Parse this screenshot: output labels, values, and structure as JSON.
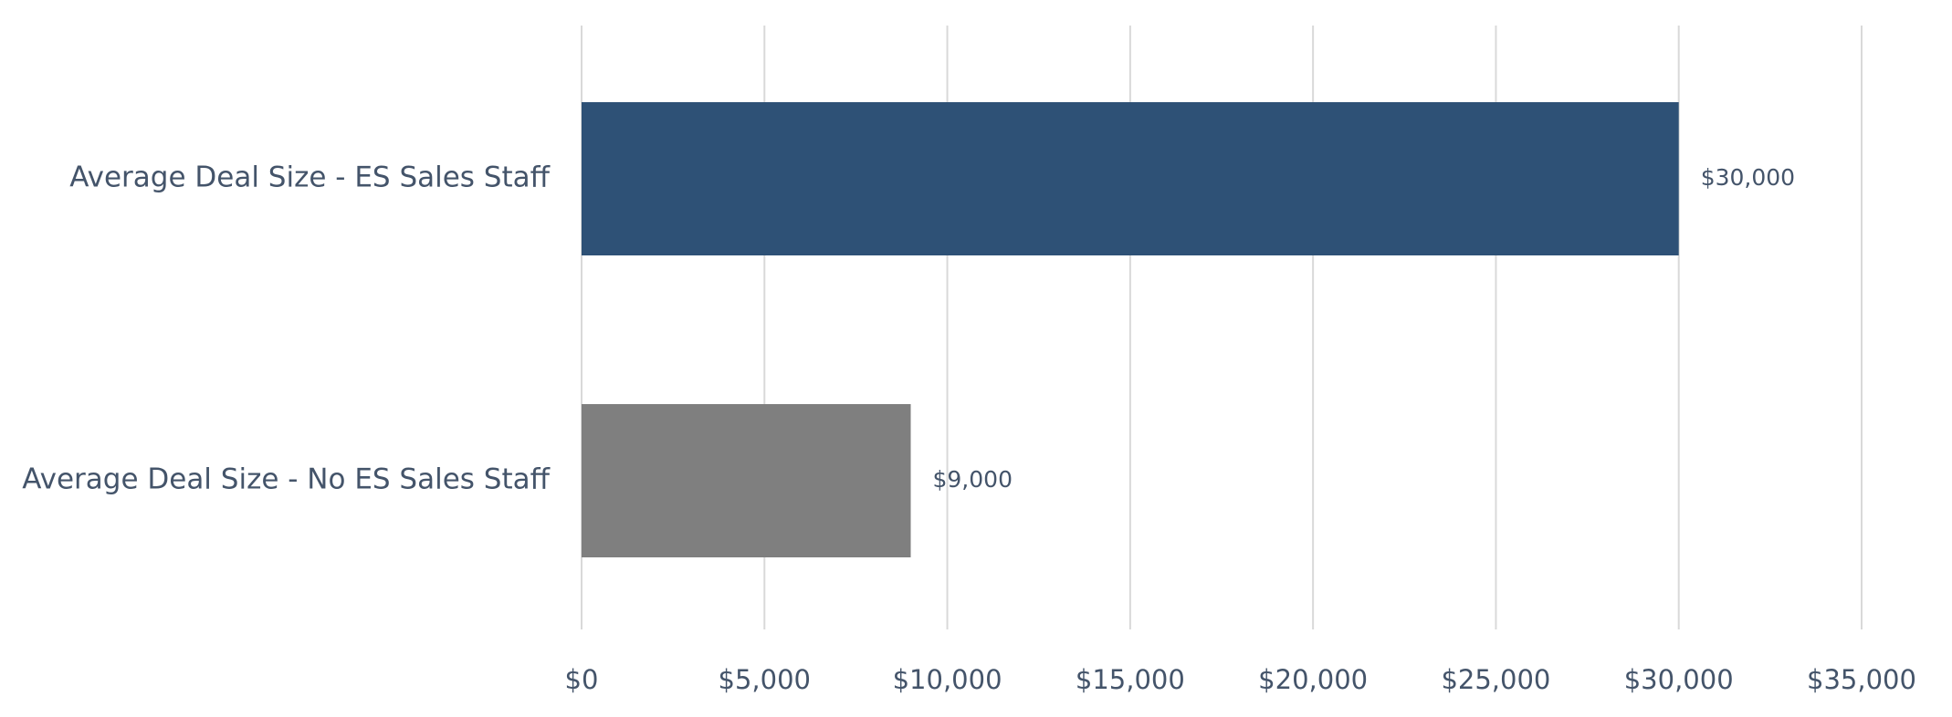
{
  "chart_data": {
    "type": "bar",
    "orientation": "horizontal",
    "categories": [
      "Average Deal Size - ES Sales Staff",
      "Average Deal Size - No ES Sales Staff"
    ],
    "values": [
      30000,
      9000
    ],
    "data_labels": [
      "$30,000",
      "$9,000"
    ],
    "colors": [
      "#2e5176",
      "#7f7f7f"
    ],
    "x_ticks": [
      0,
      5000,
      10000,
      15000,
      20000,
      25000,
      30000,
      35000
    ],
    "x_tick_labels": [
      "$0",
      "$5,000",
      "$10,000",
      "$15,000",
      "$20,000",
      "$25,000",
      "$30,000",
      "$35,000"
    ],
    "xlim": [
      0,
      35000
    ],
    "title": "",
    "xlabel": "",
    "ylabel": "",
    "grid": "vertical",
    "legend": "none"
  }
}
